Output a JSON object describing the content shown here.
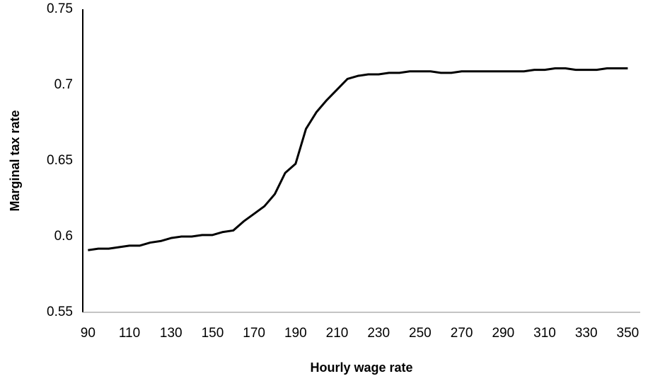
{
  "chart_data": {
    "type": "line",
    "xlabel": "Hourly wage rate",
    "ylabel": "Marginal tax rate",
    "x": [
      90,
      95,
      100,
      105,
      110,
      115,
      120,
      125,
      130,
      135,
      140,
      145,
      150,
      155,
      160,
      165,
      170,
      175,
      180,
      185,
      190,
      195,
      200,
      205,
      210,
      215,
      220,
      225,
      230,
      235,
      240,
      245,
      250,
      255,
      260,
      265,
      270,
      275,
      280,
      285,
      290,
      295,
      300,
      305,
      310,
      315,
      320,
      325,
      330,
      335,
      340,
      345,
      350
    ],
    "series": [
      {
        "name": null,
        "color": "#000000",
        "values": [
          0.591,
          0.592,
          0.592,
          0.593,
          0.594,
          0.594,
          0.596,
          0.597,
          0.599,
          0.6,
          0.6,
          0.601,
          0.601,
          0.603,
          0.604,
          0.61,
          0.615,
          0.62,
          0.628,
          0.642,
          0.648,
          0.671,
          0.682,
          0.69,
          0.697,
          0.704,
          0.706,
          0.707,
          0.707,
          0.708,
          0.708,
          0.709,
          0.709,
          0.709,
          0.708,
          0.708,
          0.709,
          0.709,
          0.709,
          0.709,
          0.709,
          0.709,
          0.709,
          0.71,
          0.71,
          0.711,
          0.711,
          0.71,
          0.71,
          0.71,
          0.711,
          0.711,
          0.711
        ]
      }
    ],
    "xlim": [
      87.5,
      356
    ],
    "xticks": [
      90,
      110,
      130,
      150,
      170,
      190,
      210,
      230,
      250,
      270,
      290,
      310,
      330,
      350
    ],
    "ylim": [
      0.55,
      0.75
    ],
    "yticks": [
      0.55,
      0.6,
      0.65,
      0.7,
      0.75
    ],
    "grid": false
  }
}
